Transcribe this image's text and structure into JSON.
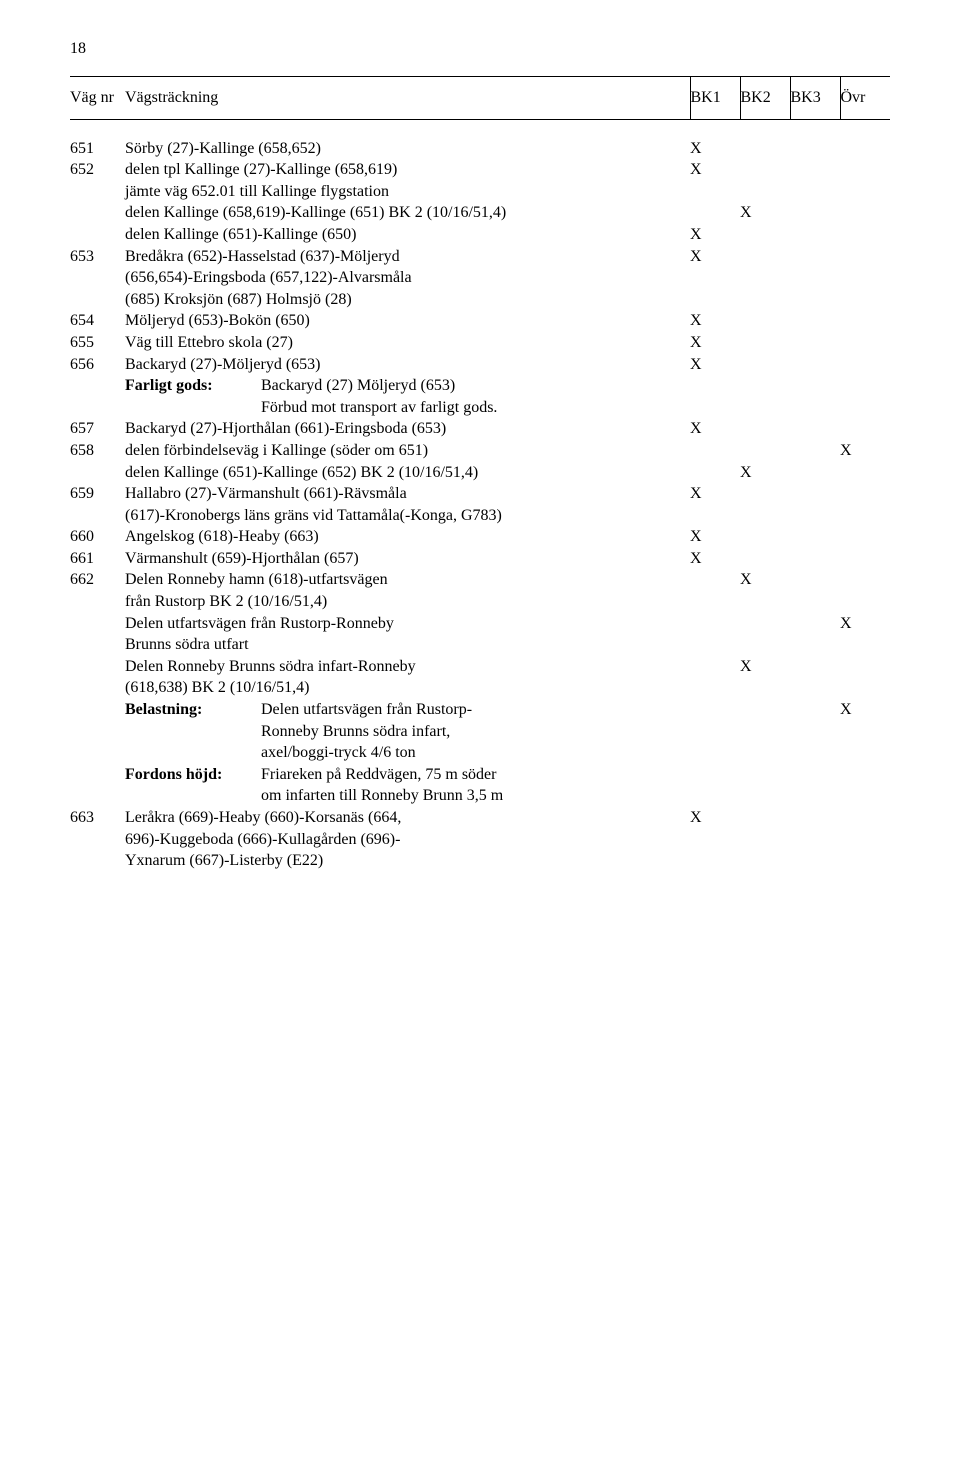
{
  "page_number": "18",
  "header": {
    "col_num": "Väg nr",
    "col_desc": "Vägsträckning",
    "col_bk1": "BK1",
    "col_bk2": "BK2",
    "col_bk3": "BK3",
    "col_ovr": "Övr"
  },
  "r651": {
    "num": "651",
    "desc": "Sörby (27)-Kallinge (658,652)",
    "bk1": "X"
  },
  "r652": {
    "num": "652",
    "desc_l1": "delen tpl Kallinge (27)-Kallinge (658,619)",
    "desc_l2": "jämte väg 652.01 till Kallinge flygstation",
    "bk1": "X"
  },
  "r652a": {
    "desc": "delen Kallinge (658,619)-Kallinge (651) BK 2 (10/16/51,4)",
    "bk2": "X"
  },
  "r652b": {
    "desc": "delen Kallinge (651)-Kallinge (650)",
    "bk1": "X"
  },
  "r653": {
    "num": "653",
    "desc_l1": "Bredåkra (652)-Hasselstad (637)-Möljeryd",
    "desc_l2": "(656,654)-Eringsboda (657,122)-Alvarsmåla",
    "desc_l3": "(685) Kroksjön (687) Holmsjö (28)",
    "bk1": "X"
  },
  "r654": {
    "num": "654",
    "desc": "Möljeryd (653)-Bokön (650)",
    "bk1": "X"
  },
  "r655": {
    "num": "655",
    "desc": "Väg till Ettebro skola (27)",
    "bk1": "X"
  },
  "r656": {
    "num": "656",
    "desc_l1": "Backaryd (27)-Möljeryd (653)",
    "label": "Farligt gods:",
    "val_l1": "Backaryd (27) Möljeryd (653)",
    "val_l2": "Förbud mot transport av farligt gods.",
    "bk1": "X"
  },
  "r657": {
    "num": "657",
    "desc": "Backaryd (27)-Hjorthålan (661)-Eringsboda (653)",
    "bk1": "X"
  },
  "r658": {
    "num": "658",
    "desc": "delen förbindelseväg i Kallinge (söder om 651)",
    "ovr": "X"
  },
  "r658a": {
    "desc": "delen Kallinge (651)-Kallinge (652) BK 2 (10/16/51,4)",
    "bk2": "X"
  },
  "r659": {
    "num": "659",
    "desc_l1": "Hallabro (27)-Värmanshult (661)-Rävsmåla",
    "desc_l2": "(617)-Kronobergs läns gräns vid Tattamåla(-Konga, G783)",
    "bk1": "X"
  },
  "r660": {
    "num": "660",
    "desc": "Angelskog (618)-Heaby (663)",
    "bk1": "X"
  },
  "r661": {
    "num": "661",
    "desc": "Värmanshult (659)-Hjorthålan (657)",
    "bk1": "X"
  },
  "r662": {
    "num": "662",
    "desc_l1": "Delen Ronneby hamn (618)-utfartsvägen",
    "desc_l2": "från Rustorp BK 2 (10/16/51,4)",
    "bk2": "X"
  },
  "r662a": {
    "desc_l1": "Delen utfartsvägen från Rustorp-Ronneby",
    "desc_l2": "Brunns södra utfart",
    "ovr": "X"
  },
  "r662b": {
    "desc_l1": "Delen Ronneby Brunns södra infart-Ronneby",
    "desc_l2": "(618,638) BK 2 (10/16/51,4)",
    "bk2": "X",
    "label1": "Belastning:",
    "val1_l1": "Delen utfartsvägen från Rustorp-",
    "val1_l2": "Ronneby Brunns södra infart,",
    "val1_l3": "axel/boggi-tryck 4/6 ton",
    "ovr1": "X",
    "label2": "Fordons höjd:",
    "val2_l1": "Friareken på Reddvägen, 75 m söder",
    "val2_l2": "om infarten till Ronneby Brunn 3,5 m"
  },
  "r663": {
    "num": "663",
    "desc_l1": "Leråkra (669)-Heaby (660)-Korsanäs (664,",
    "desc_l2": "696)-Kuggeboda (666)-Kullagården (696)-",
    "desc_l3": "Yxnarum (667)-Listerby (E22)",
    "bk1": "X"
  }
}
